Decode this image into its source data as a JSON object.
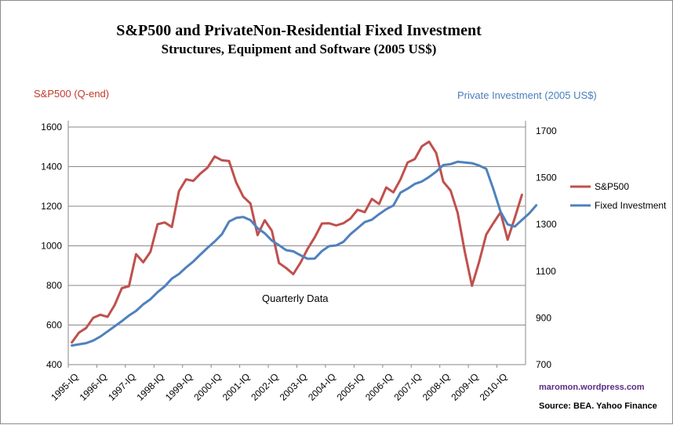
{
  "title": "S&P500 and PrivateNon-Residential  Fixed  Investment",
  "subtitle": "Structures, Equipment and Software (2005 US$)",
  "annotation": "Quarterly Data",
  "credit": "maromon.wordpress.com",
  "source": "Source:   BEA. Yahoo Finance",
  "colors": {
    "sp500": "#c0504d",
    "investment": "#4f81bd",
    "grid": "#8a8a8a"
  },
  "chart_data": {
    "type": "line",
    "title": "S&P500 and PrivateNon-Residential  Fixed  Investment",
    "subtitle": "Structures, Equipment and Software (2005 US$)",
    "ylabel_left": "S&P500 (Q-end)",
    "ylabel_right": "Private Investment  (2005 US$)",
    "ylim_left": [
      400,
      1600
    ],
    "ylim_right": [
      700,
      1700
    ],
    "yticks_left": [
      "400",
      "600",
      "800",
      "1000",
      "1200",
      "1400",
      "1600"
    ],
    "yticks_right": [
      "700",
      "900",
      "1100",
      "1300",
      "1500",
      "1700"
    ],
    "xticks": [
      "1995-IQ",
      "1996-IQ",
      "1997-IQ",
      "1998-IQ",
      "1999-IQ",
      "2000-IQ",
      "2001-IQ",
      "2002-IQ",
      "2003-IQ",
      "2004-IQ",
      "2005-IQ",
      "2006-IQ",
      "2007-IQ",
      "2008-IQ",
      "2009-IQ",
      "2010-IQ"
    ],
    "grid": true,
    "legend_position": "right",
    "series": [
      {
        "name": "S&P500",
        "axis": "left",
        "values": [
          512,
          562,
          585,
          637,
          652,
          641,
          701,
          786,
          796,
          958,
          917,
          970,
          1109,
          1118,
          1095,
          1277,
          1336,
          1328,
          1365,
          1395,
          1451,
          1432,
          1428,
          1320,
          1248,
          1214,
          1054,
          1129,
          1076,
          913,
          888,
          857,
          915,
          985,
          1043,
          1113,
          1114,
          1103,
          1114,
          1138,
          1182,
          1170,
          1237,
          1211,
          1295,
          1270,
          1336,
          1421,
          1438,
          1503,
          1526,
          1469,
          1323,
          1280,
          1166,
          969,
          798,
          919,
          1057,
          1115,
          1169,
          1031,
          1141,
          1258
        ]
      },
      {
        "name": "Fixed Investment",
        "axis": "right",
        "values": [
          782,
          787,
          792,
          803,
          820,
          842,
          864,
          886,
          910,
          930,
          958,
          980,
          1010,
          1035,
          1068,
          1088,
          1116,
          1141,
          1171,
          1200,
          1227,
          1258,
          1312,
          1328,
          1332,
          1318,
          1284,
          1262,
          1231,
          1211,
          1190,
          1185,
          1168,
          1153,
          1154,
          1186,
          1207,
          1210,
          1225,
          1258,
          1284,
          1310,
          1320,
          1344,
          1365,
          1381,
          1436,
          1453,
          1473,
          1484,
          1503,
          1526,
          1554,
          1558,
          1568,
          1565,
          1562,
          1552,
          1538,
          1451,
          1355,
          1300,
          1291,
          1319,
          1347,
          1382
        ]
      }
    ]
  }
}
